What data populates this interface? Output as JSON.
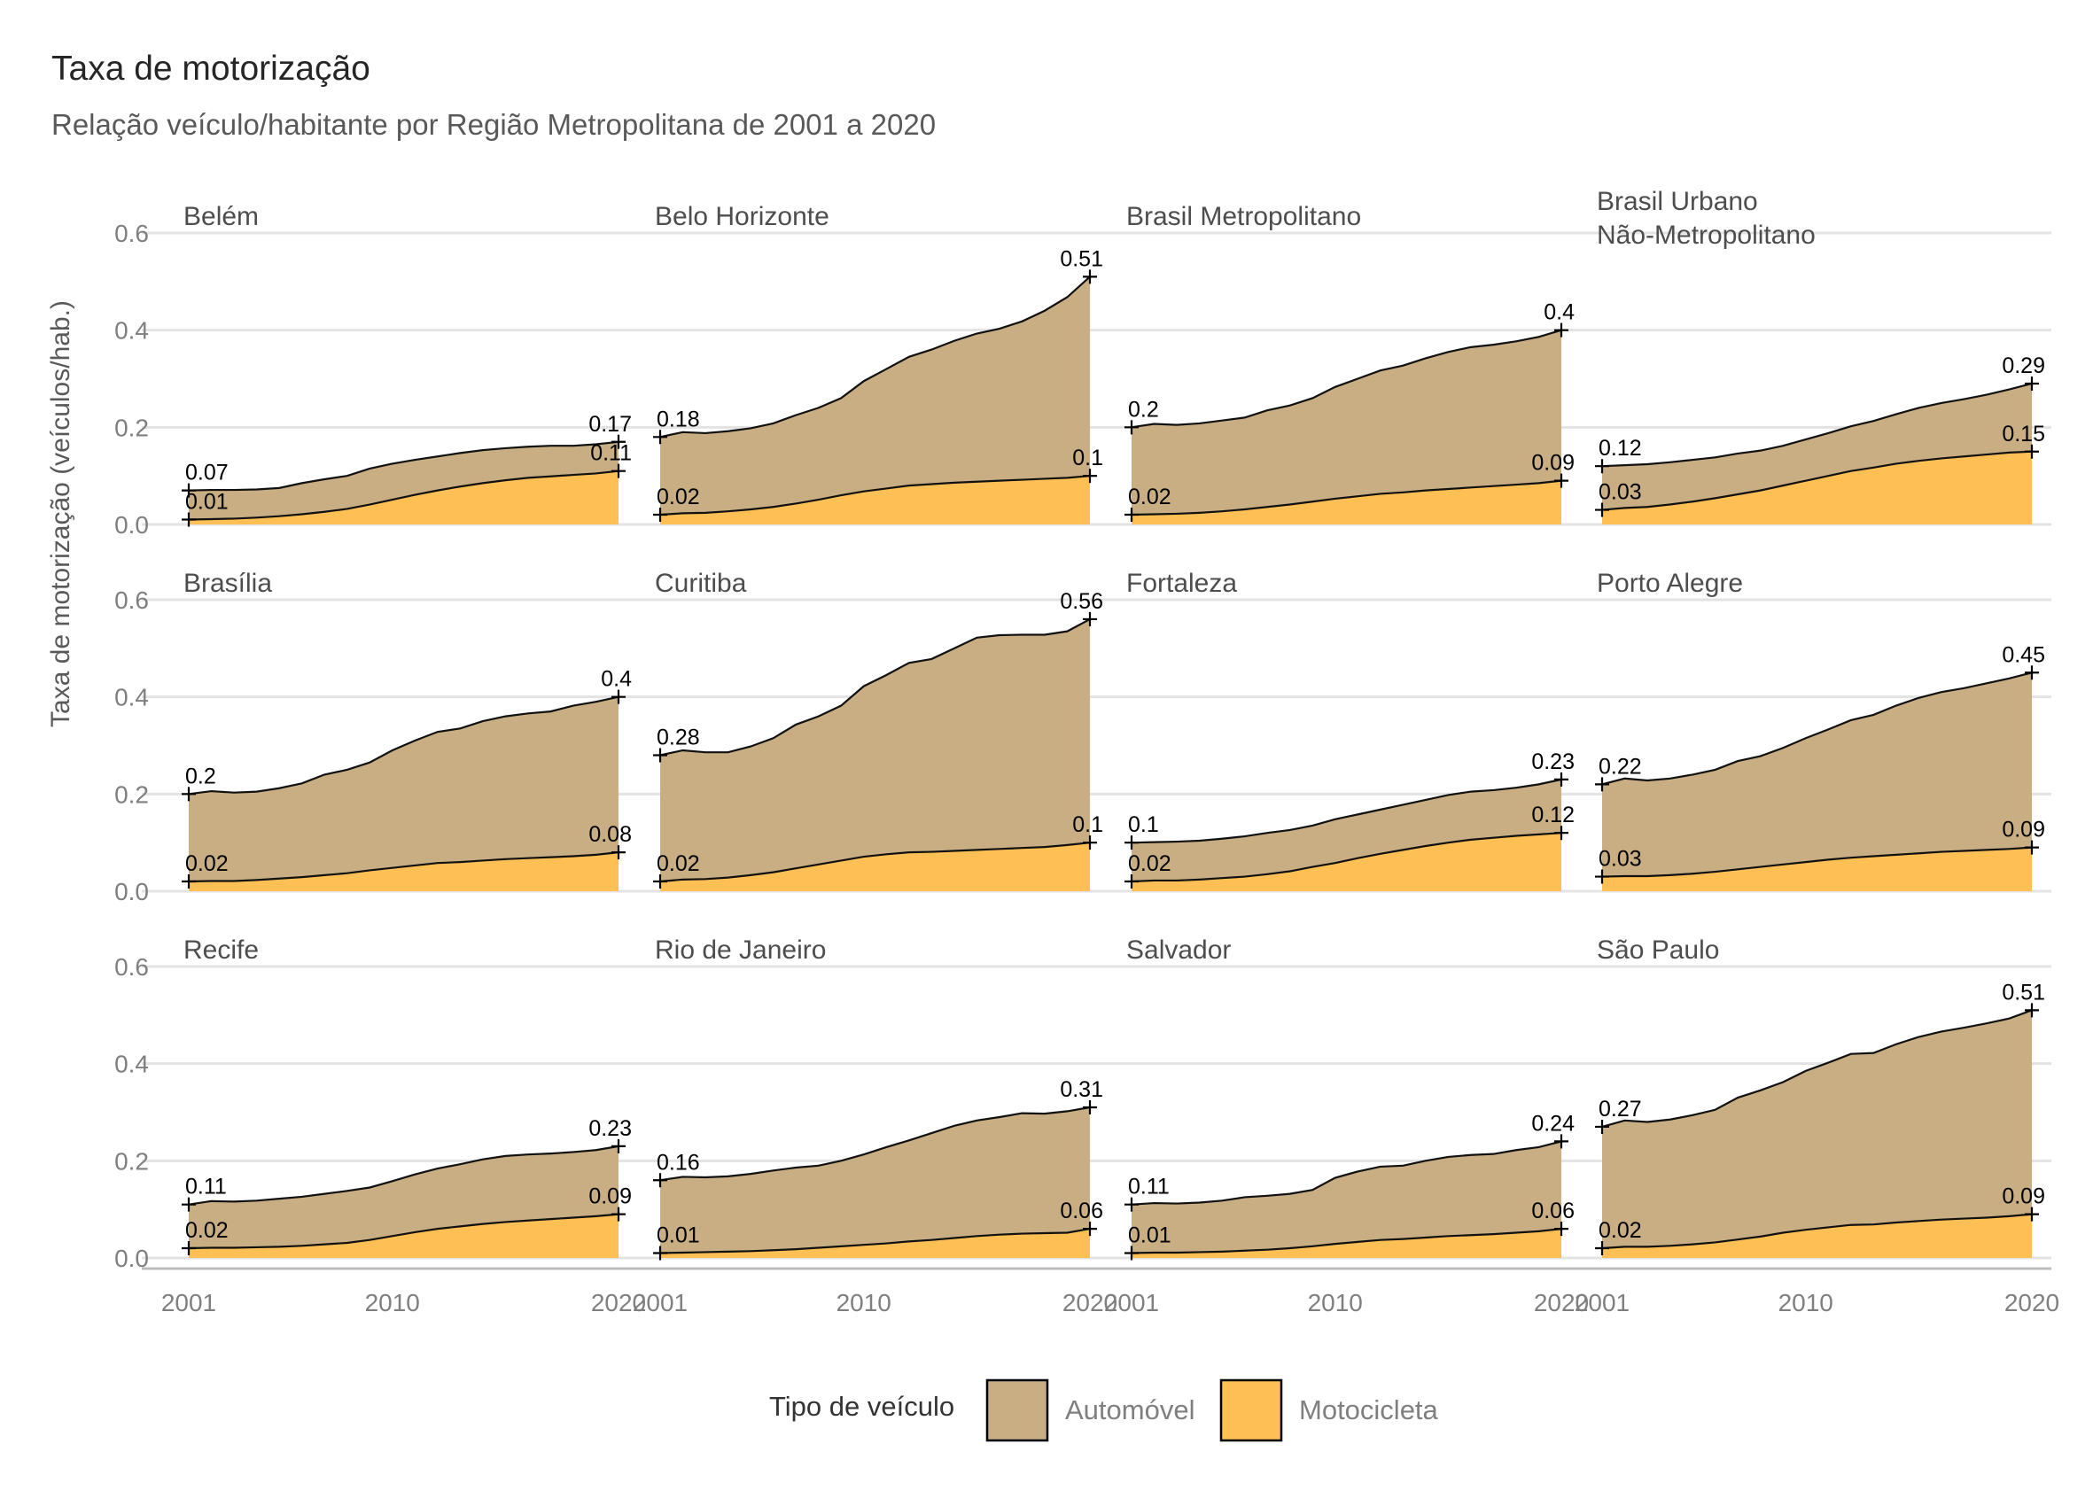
{
  "title": "Taxa de motorização",
  "subtitle": "Relação veículo/habitante por Região Metropolitana de 2001 a 2020",
  "ylabel": "Taxa de motorização (veículos/hab.)",
  "colors": {
    "auto": "#c8ae82",
    "moto": "#fec055",
    "line": "#111111",
    "grid": "#e3e3e3"
  },
  "legend": {
    "title": "Tipo de veículo",
    "items": [
      {
        "label": "Automóvel",
        "color": "#c8ae82"
      },
      {
        "label": "Motocicleta",
        "color": "#fec055"
      }
    ]
  },
  "chart_data": {
    "type": "area",
    "facets": true,
    "x_ticks": [
      2001,
      2010,
      2020
    ],
    "x_tick_labels": [
      "2001",
      "2010",
      "2020"
    ],
    "y_ticks": [
      0.0,
      0.2,
      0.4,
      0.6
    ],
    "y_tick_labels": [
      "0.0",
      "0.2",
      "0.4",
      "0.6"
    ],
    "ylim": [
      0,
      0.62
    ],
    "xlim": [
      2001,
      2020
    ],
    "years": [
      2001,
      2002,
      2003,
      2004,
      2005,
      2006,
      2007,
      2008,
      2009,
      2010,
      2011,
      2012,
      2013,
      2014,
      2015,
      2016,
      2017,
      2018,
      2019,
      2020
    ],
    "series_names": [
      "Automóvel",
      "Motocicleta"
    ],
    "panels": [
      {
        "name": "Belém",
        "auto": [
          0.07,
          0.071,
          0.071,
          0.072,
          0.075,
          0.085,
          0.093,
          0.1,
          0.115,
          0.125,
          0.133,
          0.14,
          0.147,
          0.153,
          0.157,
          0.16,
          0.162,
          0.162,
          0.165,
          0.17
        ],
        "moto": [
          0.01,
          0.011,
          0.012,
          0.014,
          0.017,
          0.021,
          0.026,
          0.032,
          0.041,
          0.051,
          0.061,
          0.07,
          0.078,
          0.085,
          0.091,
          0.096,
          0.099,
          0.102,
          0.105,
          0.11
        ],
        "labels": {
          "auto_start": "0.07",
          "auto_end": "0.17",
          "moto_start": "0.01",
          "moto_end": "0.11"
        }
      },
      {
        "name": "Belo Horizonte",
        "auto": [
          0.18,
          0.19,
          0.188,
          0.192,
          0.198,
          0.208,
          0.225,
          0.24,
          0.26,
          0.295,
          0.32,
          0.345,
          0.36,
          0.378,
          0.393,
          0.403,
          0.418,
          0.44,
          0.468,
          0.51
        ],
        "moto": [
          0.02,
          0.023,
          0.024,
          0.027,
          0.031,
          0.036,
          0.043,
          0.051,
          0.06,
          0.068,
          0.074,
          0.08,
          0.083,
          0.086,
          0.088,
          0.09,
          0.092,
          0.094,
          0.096,
          0.1
        ],
        "labels": {
          "auto_start": "0.18",
          "auto_end": "0.51",
          "moto_start": "0.02",
          "moto_end": "0.1"
        }
      },
      {
        "name": "Brasil Metropolitano",
        "auto": [
          0.2,
          0.207,
          0.205,
          0.208,
          0.214,
          0.22,
          0.235,
          0.245,
          0.26,
          0.283,
          0.3,
          0.317,
          0.327,
          0.342,
          0.355,
          0.365,
          0.37,
          0.377,
          0.386,
          0.4
        ],
        "moto": [
          0.02,
          0.021,
          0.022,
          0.024,
          0.027,
          0.031,
          0.036,
          0.041,
          0.047,
          0.053,
          0.058,
          0.063,
          0.066,
          0.07,
          0.073,
          0.076,
          0.079,
          0.082,
          0.085,
          0.09
        ],
        "labels": {
          "auto_start": "0.2",
          "auto_end": "0.4",
          "moto_start": "0.02",
          "moto_end": "0.09"
        }
      },
      {
        "name": "Brasil Urbano\nNão-Metropolitano",
        "auto": [
          0.12,
          0.122,
          0.124,
          0.128,
          0.133,
          0.138,
          0.146,
          0.152,
          0.162,
          0.175,
          0.188,
          0.202,
          0.213,
          0.227,
          0.24,
          0.25,
          0.258,
          0.267,
          0.278,
          0.29
        ],
        "moto": [
          0.03,
          0.034,
          0.036,
          0.041,
          0.047,
          0.054,
          0.062,
          0.07,
          0.08,
          0.09,
          0.1,
          0.11,
          0.117,
          0.125,
          0.131,
          0.136,
          0.14,
          0.144,
          0.148,
          0.15
        ],
        "labels": {
          "auto_start": "0.12",
          "auto_end": "0.29",
          "moto_start": "0.03",
          "moto_end": "0.15"
        }
      },
      {
        "name": "Brasília",
        "auto": [
          0.2,
          0.206,
          0.203,
          0.205,
          0.212,
          0.222,
          0.24,
          0.25,
          0.265,
          0.29,
          0.31,
          0.328,
          0.335,
          0.35,
          0.36,
          0.366,
          0.37,
          0.382,
          0.39,
          0.4
        ],
        "moto": [
          0.02,
          0.021,
          0.021,
          0.023,
          0.026,
          0.029,
          0.033,
          0.037,
          0.043,
          0.048,
          0.053,
          0.058,
          0.06,
          0.063,
          0.066,
          0.068,
          0.07,
          0.072,
          0.075,
          0.08
        ],
        "labels": {
          "auto_start": "0.2",
          "auto_end": "0.4",
          "moto_start": "0.02",
          "moto_end": "0.08"
        }
      },
      {
        "name": "Curitiba",
        "auto": [
          0.28,
          0.29,
          0.286,
          0.286,
          0.298,
          0.315,
          0.343,
          0.36,
          0.382,
          0.422,
          0.445,
          0.47,
          0.478,
          0.5,
          0.522,
          0.527,
          0.528,
          0.528,
          0.535,
          0.56
        ],
        "moto": [
          0.02,
          0.024,
          0.025,
          0.028,
          0.033,
          0.039,
          0.047,
          0.055,
          0.063,
          0.071,
          0.076,
          0.08,
          0.081,
          0.083,
          0.085,
          0.087,
          0.089,
          0.091,
          0.095,
          0.1
        ],
        "labels": {
          "auto_start": "0.28",
          "auto_end": "0.56",
          "moto_start": "0.02",
          "moto_end": "0.1"
        }
      },
      {
        "name": "Fortaleza",
        "auto": [
          0.1,
          0.101,
          0.102,
          0.104,
          0.108,
          0.113,
          0.12,
          0.126,
          0.135,
          0.148,
          0.158,
          0.168,
          0.178,
          0.188,
          0.198,
          0.205,
          0.208,
          0.213,
          0.22,
          0.23
        ],
        "moto": [
          0.02,
          0.022,
          0.022,
          0.024,
          0.027,
          0.03,
          0.035,
          0.041,
          0.05,
          0.058,
          0.068,
          0.077,
          0.085,
          0.093,
          0.1,
          0.106,
          0.11,
          0.114,
          0.117,
          0.12
        ],
        "labels": {
          "auto_start": "0.1",
          "auto_end": "0.23",
          "moto_start": "0.02",
          "moto_end": "0.12"
        }
      },
      {
        "name": "Porto Alegre",
        "auto": [
          0.22,
          0.232,
          0.228,
          0.232,
          0.24,
          0.25,
          0.268,
          0.278,
          0.295,
          0.315,
          0.333,
          0.352,
          0.363,
          0.382,
          0.398,
          0.41,
          0.418,
          0.428,
          0.438,
          0.45
        ],
        "moto": [
          0.03,
          0.031,
          0.031,
          0.033,
          0.036,
          0.04,
          0.045,
          0.05,
          0.055,
          0.06,
          0.065,
          0.069,
          0.072,
          0.075,
          0.078,
          0.081,
          0.083,
          0.085,
          0.087,
          0.09
        ],
        "labels": {
          "auto_start": "0.22",
          "auto_end": "0.45",
          "moto_start": "0.03",
          "moto_end": "0.09"
        }
      },
      {
        "name": "Recife",
        "auto": [
          0.11,
          0.117,
          0.116,
          0.118,
          0.122,
          0.126,
          0.132,
          0.138,
          0.145,
          0.158,
          0.172,
          0.184,
          0.193,
          0.203,
          0.21,
          0.213,
          0.215,
          0.218,
          0.222,
          0.23
        ],
        "moto": [
          0.02,
          0.021,
          0.021,
          0.022,
          0.023,
          0.025,
          0.028,
          0.031,
          0.037,
          0.045,
          0.053,
          0.06,
          0.065,
          0.07,
          0.074,
          0.077,
          0.08,
          0.083,
          0.086,
          0.09
        ],
        "labels": {
          "auto_start": "0.11",
          "auto_end": "0.23",
          "moto_start": "0.02",
          "moto_end": "0.09"
        }
      },
      {
        "name": "Rio de Janeiro",
        "auto": [
          0.16,
          0.167,
          0.166,
          0.168,
          0.173,
          0.18,
          0.186,
          0.19,
          0.2,
          0.213,
          0.228,
          0.242,
          0.257,
          0.272,
          0.283,
          0.29,
          0.298,
          0.297,
          0.302,
          0.31
        ],
        "moto": [
          0.01,
          0.011,
          0.012,
          0.013,
          0.014,
          0.016,
          0.018,
          0.021,
          0.024,
          0.027,
          0.03,
          0.034,
          0.037,
          0.041,
          0.045,
          0.048,
          0.05,
          0.051,
          0.052,
          0.06
        ],
        "labels": {
          "auto_start": "0.16",
          "auto_end": "0.31",
          "moto_start": "0.01",
          "moto_end": "0.06"
        }
      },
      {
        "name": "Salvador",
        "auto": [
          0.11,
          0.113,
          0.112,
          0.114,
          0.118,
          0.125,
          0.128,
          0.132,
          0.14,
          0.165,
          0.178,
          0.188,
          0.19,
          0.2,
          0.208,
          0.212,
          0.214,
          0.222,
          0.228,
          0.24
        ],
        "moto": [
          0.01,
          0.011,
          0.011,
          0.012,
          0.013,
          0.015,
          0.017,
          0.02,
          0.024,
          0.029,
          0.033,
          0.037,
          0.039,
          0.042,
          0.045,
          0.047,
          0.049,
          0.052,
          0.055,
          0.06
        ],
        "labels": {
          "auto_start": "0.11",
          "auto_end": "0.24",
          "moto_start": "0.01",
          "moto_end": "0.06"
        }
      },
      {
        "name": "São Paulo",
        "auto": [
          0.27,
          0.283,
          0.28,
          0.285,
          0.294,
          0.305,
          0.33,
          0.345,
          0.362,
          0.385,
          0.402,
          0.42,
          0.422,
          0.44,
          0.455,
          0.466,
          0.474,
          0.483,
          0.493,
          0.51
        ],
        "moto": [
          0.02,
          0.023,
          0.023,
          0.025,
          0.028,
          0.032,
          0.038,
          0.044,
          0.052,
          0.058,
          0.063,
          0.068,
          0.069,
          0.073,
          0.076,
          0.079,
          0.081,
          0.083,
          0.086,
          0.09
        ],
        "labels": {
          "auto_start": "0.27",
          "auto_end": "0.51",
          "moto_start": "0.02",
          "moto_end": "0.09"
        }
      }
    ]
  }
}
